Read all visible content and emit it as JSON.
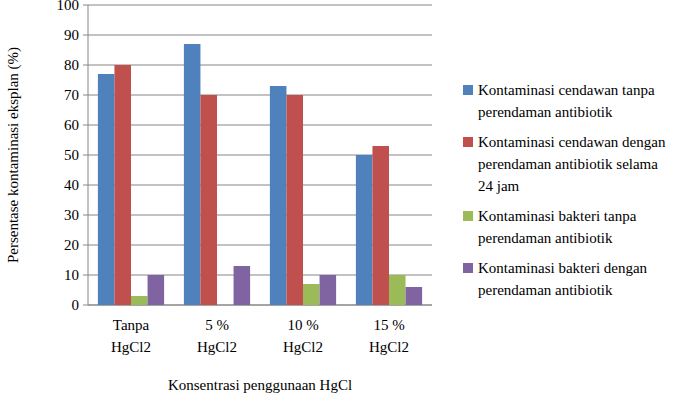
{
  "chart_data": {
    "type": "bar",
    "y_label": "Persentase kontaminasi eksplan  (%)",
    "x_label": "Konsentrasi penggunaan HgCl",
    "categories": [
      "Tanpa HgCl2",
      "5 % HgCl2",
      "10 % HgCl2",
      "15 % HgCl2"
    ],
    "series": [
      {
        "name": "Kontaminasi cendawan tanpa perendaman antibiotik",
        "color": "#4f81bd",
        "values": [
          77,
          87,
          73,
          50
        ]
      },
      {
        "name": "Kontaminasi cendawan dengan perendaman antibiotik selama 24 jam",
        "color": "#c0504d",
        "values": [
          80,
          70,
          70,
          53
        ]
      },
      {
        "name": "Kontaminasi bakteri tanpa perendaman antibiotik",
        "color": "#9bbb59",
        "values": [
          3,
          0,
          7,
          10
        ]
      },
      {
        "name": "Kontaminasi bakteri dengan perendaman antibiotik",
        "color": "#8064a2",
        "values": [
          10,
          13,
          10,
          6
        ]
      }
    ],
    "ylim": [
      0,
      100
    ],
    "yticks": [
      0,
      10,
      20,
      30,
      40,
      50,
      60,
      70,
      80,
      90,
      100
    ],
    "grid": true,
    "legend": "right"
  }
}
